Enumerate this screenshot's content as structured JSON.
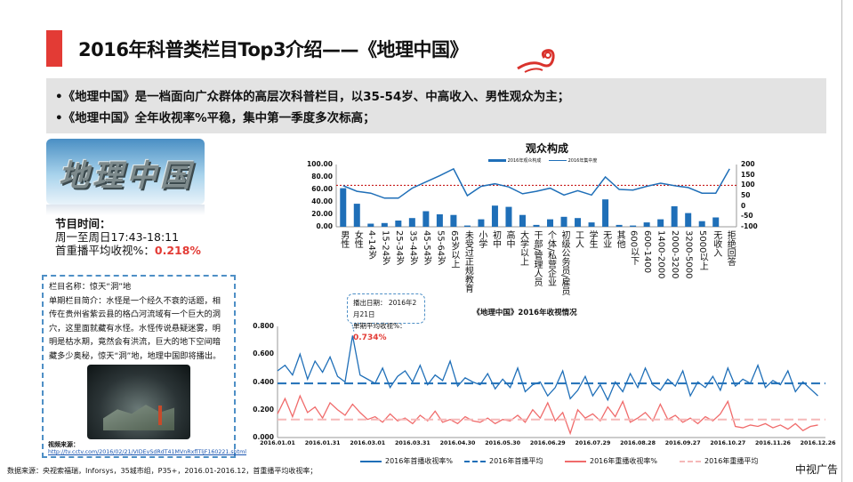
{
  "title": "2016年科普类栏目Top3介绍——《地理中国》",
  "bullets": [
    "•《地理中国》是一档面向广众群体的高层次科普栏目，以35-54岁、中高收入、男性观众为主；",
    "•《地理中国》全年收视率%平稳，集中第一季度多次标高；"
  ],
  "logo_text": "地理中国",
  "info": {
    "label": "节目时间：",
    "time": "周一至周日17:43-18:11",
    "rating_label": "首重播平均收视%：",
    "rating_value": "0.218%"
  },
  "episode": {
    "name": "栏目名称：惊天“洞”地",
    "intro": "单期栏目简介：水怪是一个经久不衰的话题，相传在贵州省紫云县的格凸河流域有一个巨大的洞穴，这里面就藏有水怪。水怪传说悬疑迷雾，明明是枯水期，竟然会有洪流，巨大的地下空间暗藏多少奥秘，惊天“洞”地，地理中国即将播出。",
    "video_source_label": "视频来源：",
    "video_url": "http://tv.cctv.com/2016/02/21/VIDEvSdRdT41MVnRxflTljF160221.shtml"
  },
  "callout": {
    "date": "播出日期： 2016年2月21日",
    "rating_label": "单期平均收视%：",
    "rating_value": "0.734%"
  },
  "footer": "数据来源：央视索福瑞，Inforsys，35城市组，P35+，2016.01-2016.12，首重播平均收视率；",
  "brand": "中视广告",
  "colors": {
    "accent": "#e33b35",
    "blue": "#1f6fb8",
    "red": "#f06b6b",
    "pink": "#f5b8b8"
  },
  "chart_data": [
    {
      "type": "bar",
      "title": "观众构成",
      "categories": [
        "男性",
        "女性",
        "4-14岁",
        "15-24岁",
        "25-34岁",
        "35-44岁",
        "45-54岁",
        "55-64岁",
        "65岁以上",
        "未受过正规教育",
        "小学",
        "初中",
        "高中",
        "大学以上",
        "干部/管理人员",
        "个体/私营企业",
        "初级公务员/雇员",
        "工人",
        "学生",
        "无业",
        "其他",
        "600以下",
        "600-1400",
        "1400-2000",
        "2000-3200",
        "3200-5000",
        "5000以上",
        "无收入",
        "拒绝回答"
      ],
      "series": [
        {
          "name": "2016年观众构成",
          "axis": "left",
          "values": [
            62,
            37,
            5,
            6,
            10,
            14,
            25,
            20,
            19,
            2,
            12,
            34,
            32,
            19,
            3,
            12,
            16,
            14,
            7,
            44,
            3,
            2,
            7,
            12,
            33,
            22,
            9,
            15,
            0
          ]
        },
        {
          "name": "2016年集中度",
          "axis": "right",
          "values": [
            98,
            71,
            62,
            38,
            38,
            86,
            116,
            146,
            179,
            50,
            95,
            107,
            92,
            59,
            71,
            86,
            53,
            74,
            53,
            140,
            80,
            77,
            95,
            110,
            98,
            89,
            62,
            62,
            179
          ]
        }
      ],
      "reference_line": 100,
      "ylim_left": [
        0,
        100
      ],
      "yticks_left": [
        "100.00",
        "80.00",
        "60.00",
        "40.00",
        "20.00",
        "0.00"
      ],
      "ylim_right": [
        -100,
        200
      ],
      "yticks_right": [
        "200",
        "150",
        "100",
        "50",
        "0",
        "-50",
        "-100"
      ],
      "legend": "top"
    },
    {
      "type": "line",
      "title": "《地理中国》2016年收视情况",
      "x_range_days": [
        0,
        365
      ],
      "xticks": [
        "2016.01.01",
        "2016.01.31",
        "2016.03.01",
        "2016.03.31",
        "2016.04.30",
        "2016.05.30",
        "2016.06.29",
        "2016.07.29",
        "2016.08.28",
        "2016.09.27",
        "2016.10.27",
        "2016.11.26",
        "2016.12.26"
      ],
      "ylim": [
        0,
        0.8
      ],
      "yticks": [
        "0.800",
        "0.600",
        "0.400",
        "0.200",
        "0.000"
      ],
      "series": [
        {
          "name": "2016年首播收视率%",
          "style": "solid",
          "values": [
            0.48,
            0.52,
            0.45,
            0.6,
            0.42,
            0.55,
            0.47,
            0.58,
            0.44,
            0.4,
            0.734,
            0.45,
            0.42,
            0.39,
            0.5,
            0.36,
            0.44,
            0.48,
            0.4,
            0.52,
            0.38,
            0.45,
            0.41,
            0.55,
            0.37,
            0.43,
            0.4,
            0.38,
            0.46,
            0.35,
            0.42,
            0.36,
            0.5,
            0.33,
            0.38,
            0.4,
            0.3,
            0.36,
            0.48,
            0.28,
            0.34,
            0.44,
            0.3,
            0.38,
            0.27,
            0.4,
            0.33,
            0.46,
            0.36,
            0.5,
            0.38,
            0.34,
            0.42,
            0.37,
            0.48,
            0.3,
            0.4,
            0.36,
            0.44,
            0.34,
            0.5,
            0.37,
            0.42,
            0.39,
            0.52,
            0.36,
            0.41,
            0.38,
            0.48,
            0.33,
            0.4,
            0.35,
            0.3
          ]
        },
        {
          "name": "2016年首播平均",
          "style": "dashed",
          "value": 0.39
        },
        {
          "name": "2016年重播收视率%",
          "style": "solid",
          "values": [
            0.17,
            0.28,
            0.15,
            0.3,
            0.18,
            0.22,
            0.14,
            0.25,
            0.2,
            0.16,
            0.24,
            0.18,
            0.13,
            0.15,
            0.11,
            0.17,
            0.12,
            0.14,
            0.1,
            0.16,
            0.12,
            0.19,
            0.11,
            0.13,
            0.1,
            0.15,
            0.12,
            0.11,
            0.14,
            0.1,
            0.13,
            0.12,
            0.16,
            0.11,
            0.2,
            0.14,
            0.25,
            0.12,
            0.18,
            0.03,
            0.2,
            0.14,
            0.17,
            0.12,
            0.22,
            0.15,
            0.26,
            0.11,
            0.14,
            0.18,
            0.12,
            0.24,
            0.13,
            0.16,
            0.11,
            0.14,
            0.1,
            0.15,
            0.12,
            0.17,
            0.26,
            0.08,
            0.07,
            0.09,
            0.08,
            0.1,
            0.07,
            0.09,
            0.06,
            0.1,
            0.05,
            0.08,
            0.09
          ]
        },
        {
          "name": "2016年重播平均",
          "style": "dashed",
          "value": 0.13
        }
      ],
      "legend": "bottom"
    }
  ]
}
